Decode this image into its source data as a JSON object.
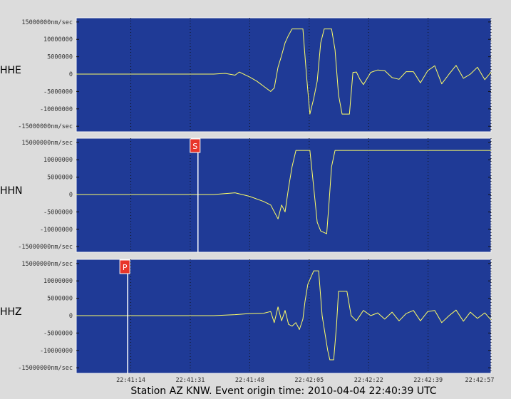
{
  "chart_data": [
    {
      "type": "line",
      "ylabel": "HHE",
      "color": "#ffff66",
      "xlim": [
        19.4,
        138.0
      ],
      "ylim": [
        -16600000,
        16200000
      ],
      "yticks": [
        {
          "value": 15000000,
          "label": "15000000nm/sec"
        },
        10000000,
        5000000,
        0,
        -5000000,
        -10000000,
        {
          "value": -15000000,
          "label": "-15000000nm/sec"
        }
      ],
      "x": [
        19.4,
        58.7,
        62,
        64.8,
        66,
        68.9,
        71,
        73,
        75,
        76,
        77.1,
        78,
        79.1,
        80,
        81.1,
        84.2,
        85.2,
        86.2,
        87.3,
        88.3,
        89.3,
        90.3,
        92.4,
        93.4,
        94.4,
        95.4,
        97.5,
        98.5,
        99.5,
        100.5,
        101.5,
        103.6,
        105.6,
        107.6,
        109.7,
        111.7,
        113.7,
        115.8,
        117.8,
        119.9,
        121.9,
        123.9,
        126,
        128,
        130.1,
        132.1,
        134.1,
        136.2,
        138
      ],
      "values": [
        0,
        0,
        200000,
        -300000,
        600000,
        -800000,
        -2000000,
        -3500000,
        -5000000,
        -4000000,
        2000000,
        5000000,
        9000000,
        11000000,
        13000000,
        13000000,
        0,
        -11500000,
        -7000000,
        -2000000,
        9000000,
        13000000,
        13000000,
        7000000,
        -6000000,
        -11500000,
        -11500000,
        500000,
        600000,
        -1500000,
        -3000000,
        500000,
        1200000,
        1000000,
        -1000000,
        -1500000,
        700000,
        700000,
        -2500000,
        1000000,
        2400000,
        -2800000,
        0,
        2500000,
        -1200000,
        0,
        2000000,
        -1600000,
        600000
      ]
    },
    {
      "type": "line",
      "ylabel": "HHN",
      "color": "#ffff66",
      "xlim": [
        19.4,
        138.0
      ],
      "ylim": [
        -16600000,
        16200000
      ],
      "yticks": [
        {
          "value": 15000000,
          "label": "15000000nm/sec"
        },
        10000000,
        5000000,
        0,
        -5000000,
        -10000000,
        {
          "value": -15000000,
          "label": "-15000000nm/sec"
        }
      ],
      "picks": [
        {
          "label": "S",
          "x": 54.2
        }
      ],
      "x": [
        19.4,
        58.7,
        64.8,
        68.9,
        73,
        75,
        77.1,
        78.1,
        79.1,
        80.1,
        81.1,
        82.2,
        86.2,
        87.3,
        88.3,
        89.3,
        91,
        91.7,
        92.4,
        93.4,
        138
      ],
      "values": [
        0,
        0,
        500000,
        -500000,
        -2000000,
        -3000000,
        -7000000,
        -3000000,
        -5000000,
        2000000,
        8000000,
        12700000,
        12700000,
        2000000,
        -8000000,
        -10500000,
        -11300000,
        -2000000,
        8000000,
        12700000,
        12700000
      ]
    },
    {
      "type": "line",
      "ylabel": "HHZ",
      "color": "#ffff66",
      "xlim": [
        19.4,
        138.0
      ],
      "ylim": [
        -16600000,
        16200000
      ],
      "yticks": [
        {
          "value": 15000000,
          "label": "15000000nm/sec"
        },
        10000000,
        5000000,
        0,
        -5000000,
        -10000000,
        {
          "value": -15000000,
          "label": "-15000000nm/sec"
        }
      ],
      "xticks": [
        {
          "value": 35,
          "label": "22:41:14"
        },
        {
          "value": 52,
          "label": "22:41:31"
        },
        {
          "value": 69,
          "label": "22:41:48"
        },
        {
          "value": 86,
          "label": "22:42:05"
        },
        {
          "value": 103,
          "label": "22:42:22"
        },
        {
          "value": 120,
          "label": "22:42:39"
        },
        {
          "value": 138,
          "label": "22:42:57"
        }
      ],
      "xlabel": "Station AZ KNW.  Event origin time: 2010-04-04 22:40:39 UTC",
      "picks": [
        {
          "label": "P",
          "x": 34.1
        }
      ],
      "x": [
        19.4,
        58.7,
        64.8,
        68.9,
        73,
        75,
        76,
        77.1,
        78.1,
        79.1,
        80.1,
        81.1,
        82.2,
        83.2,
        84.2,
        84.8,
        85.6,
        87.3,
        88.7,
        89.7,
        91.3,
        91.9,
        93,
        93.8,
        94.4,
        96.8,
        98,
        99.5,
        101.5,
        103.6,
        105.6,
        107.6,
        109.7,
        111.7,
        113.7,
        115.8,
        117.8,
        119.9,
        121.9,
        123.9,
        126,
        128,
        130.1,
        132.1,
        134.1,
        136.2,
        138
      ],
      "values": [
        0,
        0,
        300000,
        600000,
        700000,
        1200000,
        -2000000,
        2500000,
        -1500000,
        1500000,
        -2500000,
        -3000000,
        -2000000,
        -4000000,
        -1000000,
        4000000,
        9000000,
        12900000,
        12900000,
        0,
        -10000000,
        -12700000,
        -12700000,
        -3000000,
        7000000,
        7000000,
        0,
        -1500000,
        1500000,
        0,
        800000,
        -1000000,
        1000000,
        -1500000,
        600000,
        1500000,
        -1500000,
        1200000,
        1500000,
        -2000000,
        0,
        1600000,
        -1600000,
        1000000,
        -800000,
        800000,
        -1200000
      ]
    }
  ]
}
